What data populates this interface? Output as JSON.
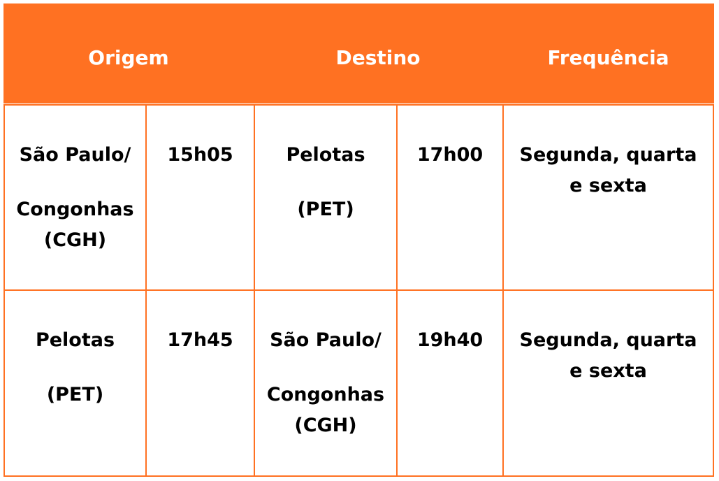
{
  "header": {
    "origin": "Origem",
    "destination": "Destino",
    "frequency": "Frequência"
  },
  "colors": {
    "accent": "#FF7122"
  },
  "rows": [
    {
      "origin": [
        "São Paulo/",
        "Congonhas (CGH)"
      ],
      "departure": "15h05",
      "destination": [
        "Pelotas",
        "(PET)"
      ],
      "arrival": "17h00",
      "frequency": [
        "Segunda, quarta e sexta"
      ]
    },
    {
      "origin": [
        "Pelotas",
        "(PET)"
      ],
      "departure": "17h45",
      "destination": [
        "São Paulo/",
        "Congonhas (CGH)"
      ],
      "arrival": "19h40",
      "frequency": [
        "Segunda, quarta e sexta"
      ]
    }
  ]
}
